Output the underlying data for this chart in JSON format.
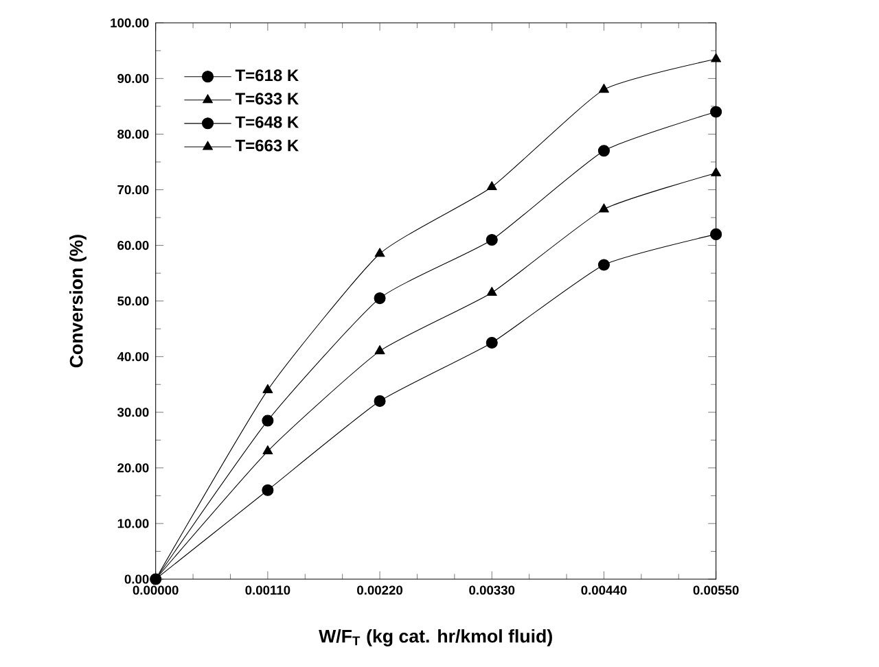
{
  "chart_data": {
    "type": "line",
    "xlabel": "W/F$_{T}$   (kg cat. hr/kmol fluid)",
    "ylabel": "Conversion  (%)",
    "x": [
      0,
      0.0011,
      0.0022,
      0.0033,
      0.0044,
      0.0055
    ],
    "series": [
      {
        "name": "T=618 K",
        "color": "#000000",
        "marker": "circle",
        "values": [
          0,
          16,
          32,
          42.5,
          56.5,
          62
        ]
      },
      {
        "name": "T=633 K",
        "color": "#000000",
        "marker": "triangle",
        "values": [
          0,
          23,
          41,
          51.5,
          66.5,
          73
        ]
      },
      {
        "name": "T=648 K",
        "color": "#000000",
        "marker": "circle",
        "values": [
          0,
          28.5,
          50.5,
          61,
          77,
          84
        ]
      },
      {
        "name": "T=663 K",
        "color": "#000000",
        "marker": "triangle",
        "values": [
          0,
          34,
          58.5,
          70.5,
          88,
          93.5
        ]
      }
    ],
    "xlim": [
      0,
      0.0055
    ],
    "ylim": [
      0,
      100
    ],
    "xticks": [
      {
        "value": 0,
        "label": "0.00000"
      },
      {
        "value": 0.0011,
        "label": "0.00110"
      },
      {
        "value": 0.0022,
        "label": "0.00220"
      },
      {
        "value": 0.0033,
        "label": "0.00330"
      },
      {
        "value": 0.0044,
        "label": "0.00440"
      },
      {
        "value": 0.0055,
        "label": "0.00550"
      }
    ],
    "yticks": [
      {
        "value": 0,
        "label": "0.00"
      },
      {
        "value": 10,
        "label": "10.00"
      },
      {
        "value": 20,
        "label": "20.00"
      },
      {
        "value": 30,
        "label": "30.00"
      },
      {
        "value": 40,
        "label": "40.00"
      },
      {
        "value": 50,
        "label": "50.00"
      },
      {
        "value": 60,
        "label": "60.00"
      },
      {
        "value": 70,
        "label": "70.00"
      },
      {
        "value": 80,
        "label": "80.00"
      },
      {
        "value": 90,
        "label": "90.00"
      },
      {
        "value": 100,
        "label": "100.00"
      }
    ],
    "grid": false,
    "legend": "top left",
    "line_style": "solid"
  }
}
